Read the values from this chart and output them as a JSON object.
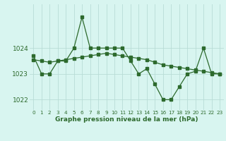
{
  "x": [
    0,
    1,
    2,
    3,
    4,
    5,
    6,
    7,
    8,
    9,
    10,
    11,
    12,
    13,
    14,
    15,
    16,
    17,
    18,
    19,
    20,
    21,
    22,
    23
  ],
  "y_main": [
    1023.7,
    1023.0,
    1023.0,
    1023.5,
    1023.5,
    1024.0,
    1025.2,
    1024.0,
    1024.0,
    1024.0,
    1024.0,
    1024.0,
    1023.5,
    1023.0,
    1023.2,
    1022.6,
    1022.0,
    1022.0,
    1022.5,
    1023.0,
    1023.1,
    1024.0,
    1023.0,
    1023.0
  ],
  "y_trend": [
    1023.55,
    1023.5,
    1023.45,
    1023.5,
    1023.55,
    1023.6,
    1023.65,
    1023.7,
    1023.75,
    1023.8,
    1023.75,
    1023.7,
    1023.65,
    1023.6,
    1023.55,
    1023.45,
    1023.35,
    1023.3,
    1023.25,
    1023.2,
    1023.15,
    1023.1,
    1023.05,
    1023.0
  ],
  "line_color": "#2d6a2d",
  "bg_color": "#d8f5f0",
  "grid_color": "#b8dcd6",
  "ylabel_ticks": [
    1022,
    1023,
    1024
  ],
  "ylim": [
    1021.6,
    1025.7
  ],
  "xlim": [
    -0.5,
    23.5
  ],
  "xlabel": "Graphe pression niveau de la mer (hPa)",
  "xlabel_fontsize": 6.5,
  "ytick_fontsize": 6.5,
  "xtick_fontsize": 5.2
}
